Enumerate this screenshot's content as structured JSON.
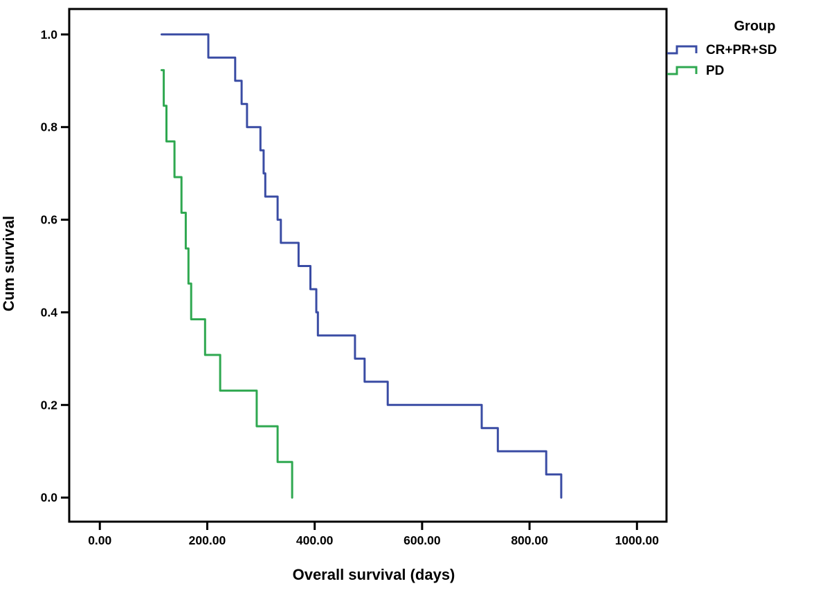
{
  "chart_data": {
    "type": "line",
    "variant": "kaplan_meier_step",
    "title": "",
    "xlabel": "Overall survival (days)",
    "ylabel": "Cum survival",
    "xlim": [
      -57,
      1055
    ],
    "ylim": [
      -0.052,
      1.055
    ],
    "grid": false,
    "background_color": "#ffffff",
    "frame_color": "#000000",
    "legend": {
      "title": "Group",
      "position": "outside-top-right"
    },
    "x_ticks": {
      "values": [
        0,
        200,
        400,
        600,
        800,
        1000
      ],
      "labels": [
        "0.00",
        "200.00",
        "400.00",
        "600.00",
        "800.00",
        "1000.00"
      ]
    },
    "y_ticks": {
      "values": [
        0.0,
        0.2,
        0.4,
        0.6,
        0.8,
        1.0
      ],
      "labels": [
        "0.0",
        "0.2",
        "0.4",
        "0.6",
        "0.8",
        "1.0"
      ]
    },
    "series": [
      {
        "name": "CR+PR+SD",
        "color": "#3a4ca4",
        "points": [
          [
            115,
            1.0
          ],
          [
            202,
            0.95
          ],
          [
            252,
            0.9
          ],
          [
            264,
            0.85
          ],
          [
            274,
            0.8
          ],
          [
            299,
            0.75
          ],
          [
            305,
            0.7
          ],
          [
            308,
            0.65
          ],
          [
            331,
            0.6
          ],
          [
            337,
            0.55
          ],
          [
            370,
            0.5
          ],
          [
            392,
            0.45
          ],
          [
            403,
            0.4
          ],
          [
            406,
            0.35
          ],
          [
            475,
            0.3
          ],
          [
            493,
            0.25
          ],
          [
            536,
            0.2
          ],
          [
            711,
            0.15
          ],
          [
            741,
            0.1
          ],
          [
            831,
            0.05
          ],
          [
            859,
            0.0
          ]
        ]
      },
      {
        "name": "PD",
        "color": "#2fa850",
        "points": [
          [
            115,
            0.923
          ],
          [
            119,
            0.846
          ],
          [
            124,
            0.769
          ],
          [
            139,
            0.692
          ],
          [
            152,
            0.615
          ],
          [
            160,
            0.538
          ],
          [
            165,
            0.462
          ],
          [
            170,
            0.385
          ],
          [
            196,
            0.308
          ],
          [
            224,
            0.231
          ],
          [
            292,
            0.154
          ],
          [
            331,
            0.077
          ],
          [
            358,
            0.0
          ]
        ]
      }
    ]
  }
}
